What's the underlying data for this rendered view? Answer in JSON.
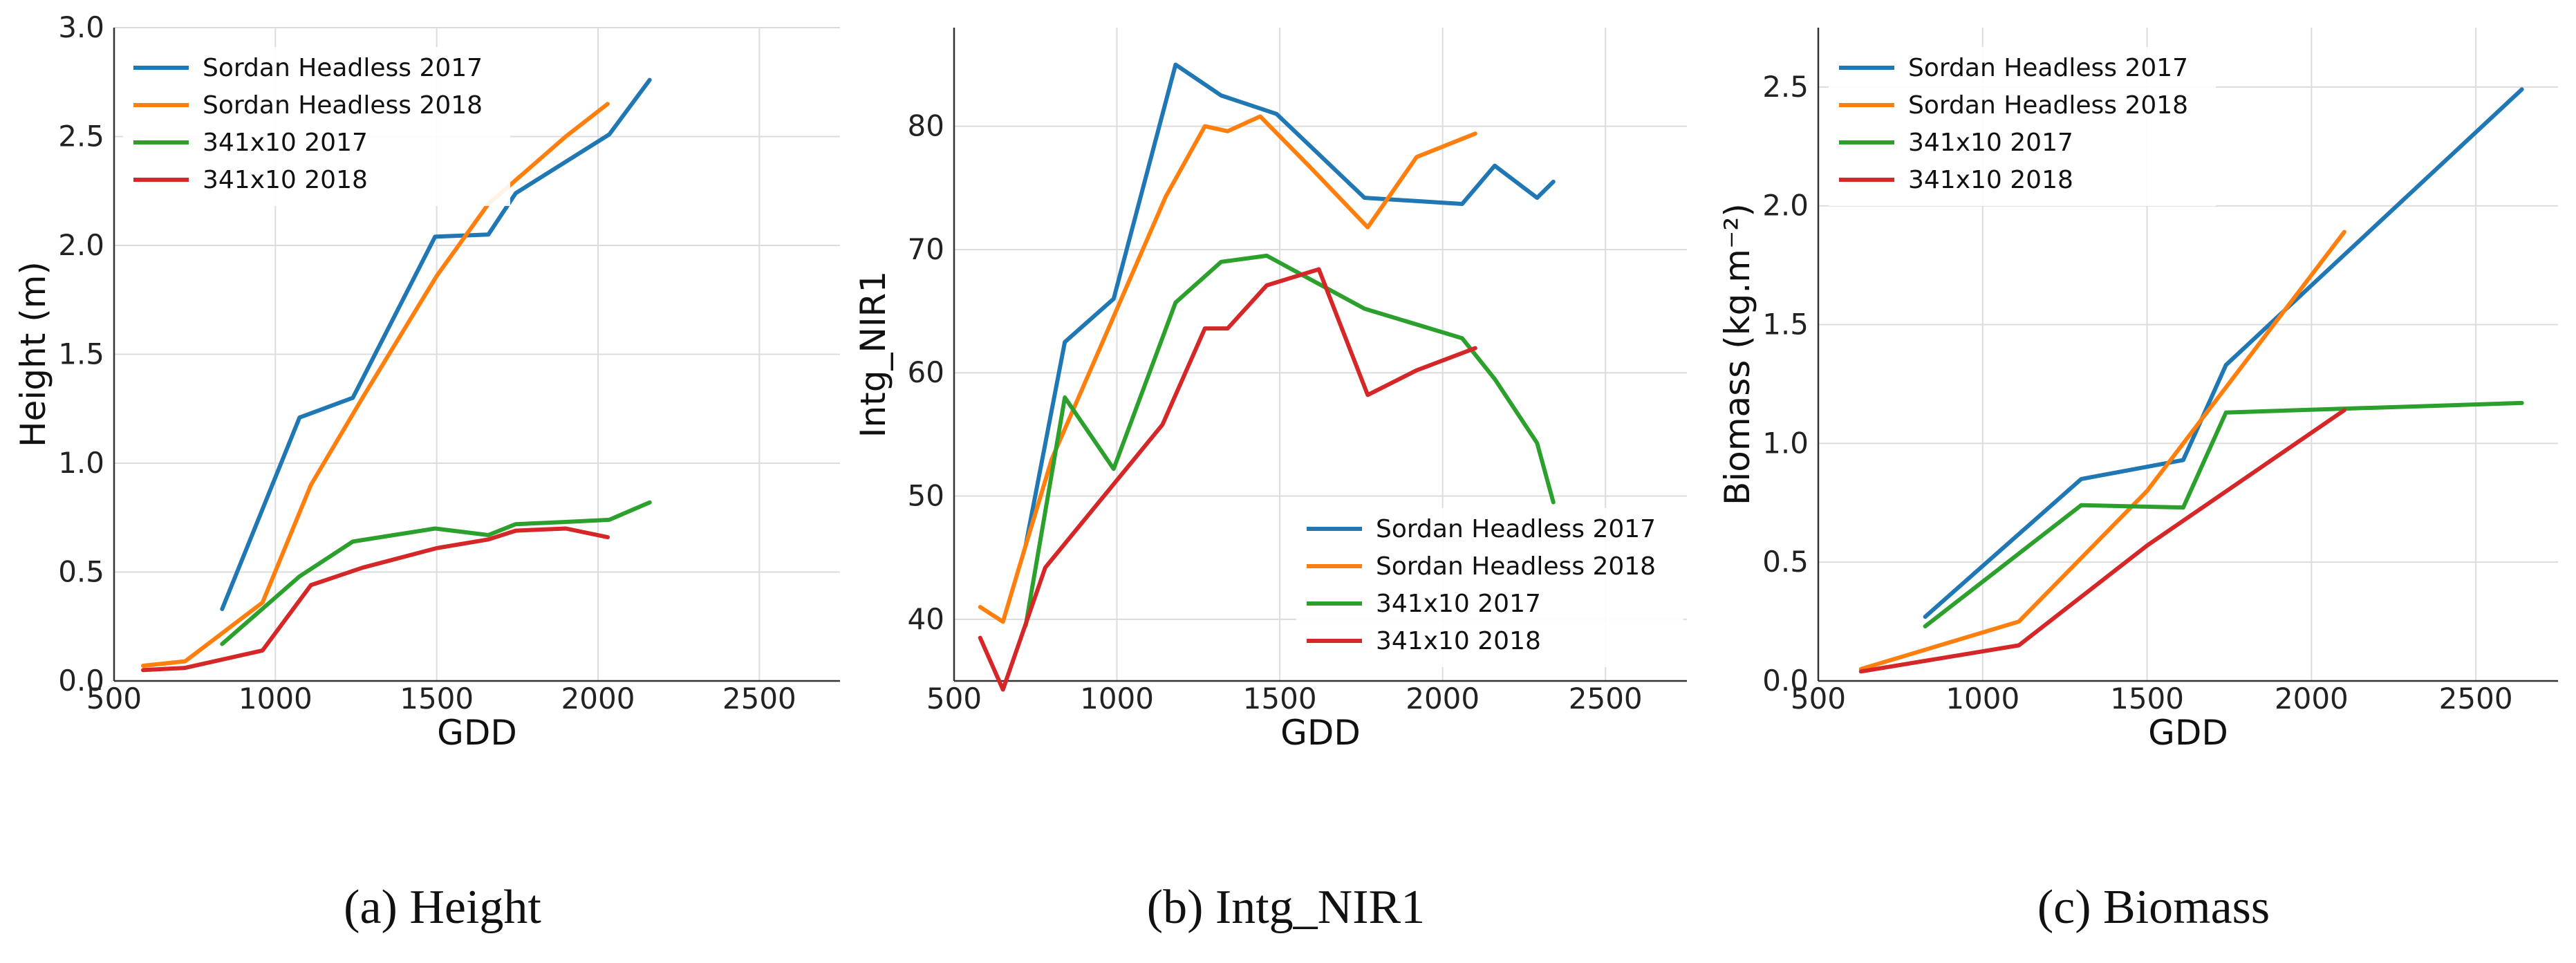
{
  "chart_data": [
    {
      "id": "a",
      "type": "line",
      "caption": "(a) Height",
      "xlabel": "GDD",
      "ylabel": "Height (m)",
      "xlim": [
        500,
        2750
      ],
      "ylim": [
        0,
        3.0
      ],
      "xticks": [
        500,
        1000,
        1500,
        2000,
        2500
      ],
      "yticks": [
        0.0,
        0.5,
        1.0,
        1.5,
        2.0,
        2.5,
        3.0
      ],
      "xtick_labels": [
        "500",
        "1000",
        "1500",
        "2000",
        "2500"
      ],
      "ytick_labels": [
        "0.0",
        "0.5",
        "1.0",
        "1.5",
        "2.0",
        "2.5",
        "3.0"
      ],
      "grid": true,
      "legend_position": "top-left",
      "series": [
        {
          "name": "Sordan Headless 2017",
          "color": "#1f77b4",
          "x": [
            835,
            1075,
            1240,
            1495,
            1660,
            1745,
            2035,
            2160
          ],
          "y": [
            0.33,
            1.21,
            1.3,
            2.04,
            2.05,
            2.24,
            2.51,
            2.76
          ]
        },
        {
          "name": "Sordan Headless 2018",
          "color": "#ff7f0e",
          "x": [
            590,
            720,
            960,
            1110,
            1270,
            1500,
            1660,
            1900,
            2030
          ],
          "y": [
            0.07,
            0.09,
            0.36,
            0.9,
            1.3,
            1.86,
            2.19,
            2.5,
            2.65
          ]
        },
        {
          "name": "341x10 2017",
          "color": "#2ca02c",
          "x": [
            835,
            1075,
            1240,
            1495,
            1660,
            1745,
            1900,
            2035,
            2160
          ],
          "y": [
            0.17,
            0.48,
            0.64,
            0.7,
            0.67,
            0.72,
            0.73,
            0.74,
            0.82
          ]
        },
        {
          "name": "341x10 2018",
          "color": "#d62728",
          "x": [
            590,
            720,
            960,
            1110,
            1270,
            1500,
            1660,
            1745,
            1900,
            2030
          ],
          "y": [
            0.05,
            0.06,
            0.14,
            0.44,
            0.52,
            0.61,
            0.65,
            0.69,
            0.7,
            0.66
          ]
        }
      ]
    },
    {
      "id": "b",
      "type": "line",
      "caption": "(b) Intg_NIR1",
      "xlabel": "GDD",
      "ylabel": "Intg_NIR1",
      "xlim": [
        500,
        2750
      ],
      "ylim": [
        35,
        88
      ],
      "xticks": [
        500,
        1000,
        1500,
        2000,
        2500
      ],
      "yticks": [
        40,
        50,
        60,
        70,
        80
      ],
      "xtick_labels": [
        "500",
        "1000",
        "1500",
        "2000",
        "2500"
      ],
      "ytick_labels": [
        "40",
        "50",
        "60",
        "70",
        "80"
      ],
      "grid": true,
      "legend_position": "bottom-right",
      "series": [
        {
          "name": "Sordan Headless 2017",
          "color": "#1f77b4",
          "x": [
            720,
            840,
            990,
            1180,
            1320,
            1490,
            1760,
            2060,
            2160,
            2290,
            2340
          ],
          "y": [
            46,
            62.5,
            66,
            85,
            82.5,
            81,
            74.2,
            73.7,
            76.8,
            74.2,
            75.5
          ]
        },
        {
          "name": "Sordan Headless 2018",
          "color": "#ff7f0e",
          "x": [
            580,
            650,
            720,
            800,
            1150,
            1270,
            1340,
            1440,
            1600,
            1770,
            1920,
            2100
          ],
          "y": [
            41,
            39.8,
            46,
            53,
            74.3,
            80,
            79.6,
            80.8,
            76.5,
            71.8,
            77.5,
            79.4
          ]
        },
        {
          "name": "341x10 2017",
          "color": "#2ca02c",
          "x": [
            720,
            840,
            990,
            1180,
            1320,
            1460,
            1760,
            2060,
            2160,
            2290,
            2340
          ],
          "y": [
            39.5,
            58,
            52.2,
            65.7,
            69,
            69.5,
            65.2,
            62.8,
            59.5,
            54.3,
            49.5
          ]
        },
        {
          "name": "341x10 2018",
          "color": "#d62728",
          "x": [
            580,
            650,
            780,
            1140,
            1270,
            1340,
            1460,
            1620,
            1770,
            1920,
            2100
          ],
          "y": [
            38.5,
            34.3,
            44.2,
            55.8,
            63.6,
            63.6,
            67.1,
            68.4,
            58.2,
            60.2,
            62
          ]
        }
      ]
    },
    {
      "id": "c",
      "type": "line",
      "caption": "(c) Biomass",
      "xlabel": "GDD",
      "ylabel": "Biomass (kg.m⁻²)",
      "xlim": [
        500,
        2750
      ],
      "ylim": [
        0,
        2.75
      ],
      "xticks": [
        500,
        1000,
        1500,
        2000,
        2500
      ],
      "yticks": [
        0.0,
        0.5,
        1.0,
        1.5,
        2.0,
        2.5
      ],
      "xtick_labels": [
        "500",
        "1000",
        "1500",
        "2000",
        "2500"
      ],
      "ytick_labels": [
        "0.0",
        "0.5",
        "1.0",
        "1.5",
        "2.0",
        "2.5"
      ],
      "grid": true,
      "legend_position": "top-left",
      "series": [
        {
          "name": "Sordan Headless 2017",
          "color": "#1f77b4",
          "x": [
            825,
            1300,
            1610,
            1740,
            2640
          ],
          "y": [
            0.27,
            0.85,
            0.93,
            1.33,
            2.49
          ]
        },
        {
          "name": "Sordan Headless 2018",
          "color": "#ff7f0e",
          "x": [
            630,
            1110,
            1500,
            2100
          ],
          "y": [
            0.05,
            0.25,
            0.8,
            1.89
          ]
        },
        {
          "name": "341x10 2017",
          "color": "#2ca02c",
          "x": [
            825,
            1300,
            1610,
            1740,
            2640
          ],
          "y": [
            0.23,
            0.74,
            0.73,
            1.13,
            1.17
          ]
        },
        {
          "name": "341x10 2018",
          "color": "#d62728",
          "x": [
            630,
            1110,
            1500,
            2100
          ],
          "y": [
            0.04,
            0.15,
            0.57,
            1.14
          ]
        }
      ]
    }
  ]
}
